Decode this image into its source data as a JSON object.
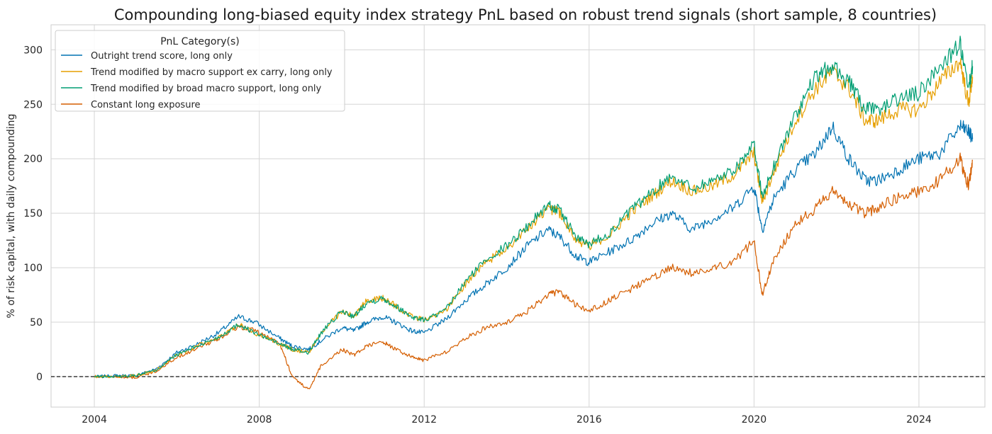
{
  "chart_data": {
    "type": "line",
    "title": "Compounding long-biased equity index strategy PnL based on robust trend signals (short sample, 8 countries)",
    "xlabel": "",
    "ylabel": "% of risk capital, with daily compounding",
    "xlim": [
      2002.95,
      2025.6
    ],
    "ylim": [
      -28,
      323
    ],
    "x_ticks": [
      2004,
      2008,
      2012,
      2016,
      2020,
      2024
    ],
    "y_ticks": [
      0,
      50,
      100,
      150,
      200,
      250,
      300
    ],
    "grid": true,
    "legend": {
      "title": "PnL Category(s)",
      "location": "upper-left"
    },
    "reference_line": {
      "y": 0,
      "style": "dashed",
      "color": "#000000"
    },
    "x": [
      2004.0,
      2004.5,
      2005.0,
      2005.5,
      2006.0,
      2006.5,
      2007.0,
      2007.5,
      2007.9,
      2008.5,
      2008.8,
      2009.2,
      2009.5,
      2010.0,
      2010.3,
      2010.6,
      2011.0,
      2011.3,
      2011.7,
      2012.0,
      2012.5,
      2013.0,
      2013.5,
      2014.0,
      2014.5,
      2015.0,
      2015.3,
      2015.7,
      2016.0,
      2016.5,
      2017.0,
      2017.5,
      2018.0,
      2018.5,
      2019.0,
      2019.5,
      2020.0,
      2020.2,
      2020.5,
      2021.0,
      2021.5,
      2021.9,
      2022.3,
      2022.7,
      2023.0,
      2023.5,
      2024.0,
      2024.5,
      2025.0,
      2025.2,
      2025.3
    ],
    "series": [
      {
        "name": "Outright trend score, long only",
        "color": "#0072b2",
        "values": [
          0,
          1,
          1,
          7,
          22,
          30,
          40,
          55,
          50,
          35,
          28,
          25,
          33,
          45,
          42,
          50,
          55,
          50,
          42,
          40,
          52,
          70,
          85,
          100,
          120,
          135,
          128,
          110,
          105,
          115,
          125,
          140,
          150,
          135,
          145,
          155,
          175,
          135,
          165,
          190,
          205,
          230,
          200,
          180,
          180,
          190,
          200,
          205,
          230,
          225,
          218
        ]
      },
      {
        "name": "Trend modified by macro support ex carry, long only",
        "color": "#e69f00",
        "values": [
          0,
          0,
          1,
          6,
          20,
          28,
          36,
          48,
          40,
          30,
          25,
          22,
          40,
          60,
          55,
          70,
          72,
          65,
          55,
          52,
          60,
          85,
          105,
          118,
          135,
          155,
          150,
          125,
          120,
          130,
          150,
          165,
          180,
          170,
          175,
          185,
          205,
          160,
          190,
          235,
          265,
          280,
          265,
          235,
          235,
          245,
          245,
          270,
          290,
          250,
          275
        ]
      },
      {
        "name": "Trend modified by broad macro support, long only",
        "color": "#009e73",
        "values": [
          0,
          0,
          1,
          6,
          20,
          28,
          36,
          48,
          40,
          30,
          25,
          22,
          40,
          60,
          55,
          68,
          72,
          65,
          55,
          52,
          60,
          87,
          108,
          120,
          138,
          158,
          152,
          127,
          122,
          132,
          152,
          168,
          185,
          173,
          180,
          190,
          212,
          165,
          195,
          240,
          275,
          285,
          270,
          245,
          245,
          255,
          260,
          285,
          305,
          262,
          285
        ]
      },
      {
        "name": "Constant long exposure",
        "color": "#d55e00",
        "values": [
          0,
          0,
          -1,
          5,
          18,
          26,
          35,
          46,
          42,
          30,
          0,
          -12,
          10,
          25,
          20,
          28,
          32,
          25,
          18,
          15,
          22,
          35,
          45,
          50,
          60,
          75,
          78,
          65,
          60,
          70,
          80,
          90,
          100,
          95,
          100,
          105,
          125,
          75,
          110,
          140,
          155,
          170,
          158,
          150,
          155,
          165,
          170,
          180,
          200,
          175,
          198
        ]
      }
    ]
  }
}
